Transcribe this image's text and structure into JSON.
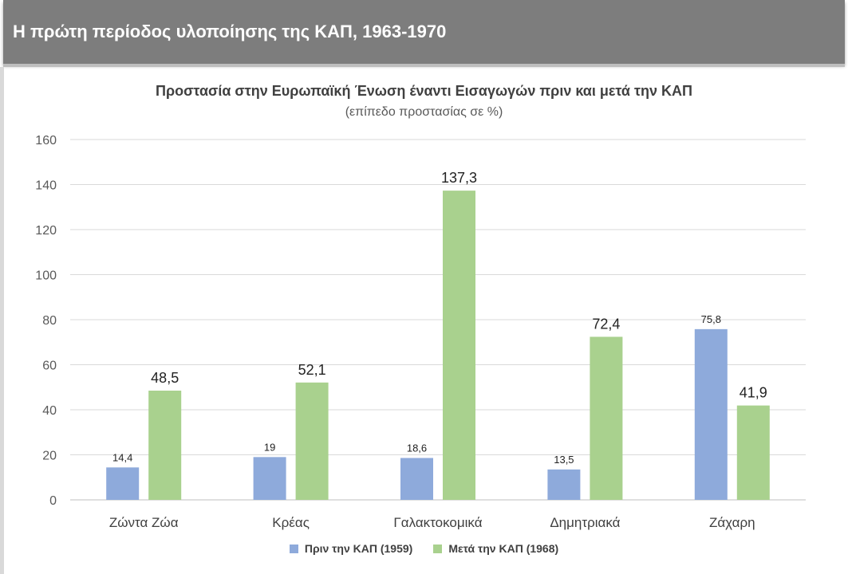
{
  "header": {
    "title": "Η πρώτη περίοδος υλοποίησης της ΚΑΠ, 1963-1970"
  },
  "chart_data": {
    "type": "bar",
    "title": "Προστασία στην Ευρωπαϊκή Ένωση έναντι Εισαγωγών πριν και μετά την ΚΑΠ",
    "subtitle": "(επίπεδο προστασίας σε %)",
    "xlabel": "",
    "ylabel": "",
    "ylim": [
      0,
      160
    ],
    "yticks": [
      0,
      20,
      40,
      60,
      80,
      100,
      120,
      140,
      160
    ],
    "grid": true,
    "legend_position": "bottom",
    "categories": [
      "Ζώντα Ζώα",
      "Κρέας",
      "Γαλακτοκομικά",
      "Δημητριακά",
      "Ζάχαρη"
    ],
    "series": [
      {
        "name": "Πριν την ΚΑΠ (1959)",
        "color": "#8eaadb",
        "values": [
          14.4,
          19,
          18.6,
          13.5,
          75.8
        ],
        "labels": [
          "14,4",
          "19",
          "18,6",
          "13,5",
          "75,8"
        ]
      },
      {
        "name": "Μετά την  ΚΑΠ (1968)",
        "color": "#a9d18e",
        "values": [
          48.5,
          52.1,
          137.3,
          72.4,
          41.9
        ],
        "labels": [
          "48,5",
          "52,1",
          "137,3",
          "72,4",
          "41,9"
        ]
      }
    ]
  }
}
